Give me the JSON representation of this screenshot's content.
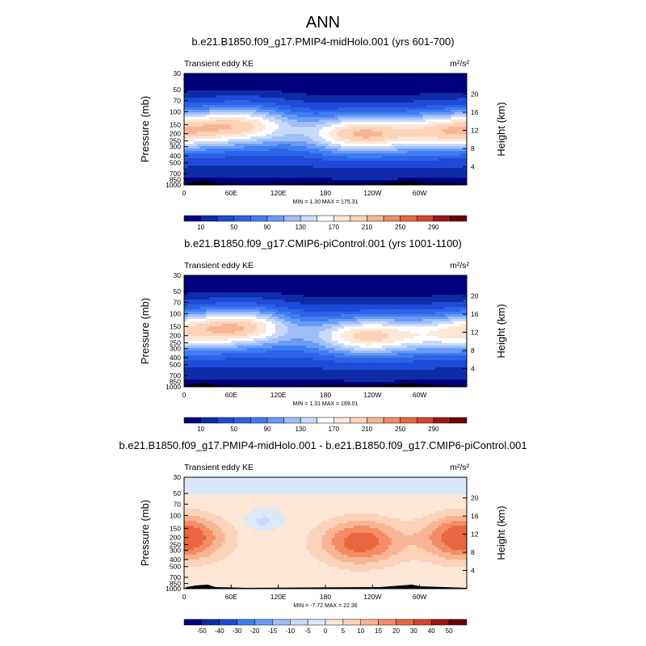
{
  "page_title": "ANN",
  "chart_data": [
    {
      "type": "heatmap",
      "title": "b.e21.B1850.f09_g17.PMIP4-midHolo.001 (yrs 601-700)",
      "left_label": "Transient eddy KE",
      "units": "m²/s²",
      "ylabel": "Pressure (mb)",
      "ylabel_right": "Height (km)",
      "x_ticks": [
        "0",
        "60E",
        "120E",
        "180",
        "120W",
        "60W"
      ],
      "y_ticks": [
        "30",
        "50",
        "70",
        "100",
        "150",
        "200",
        "250",
        "300",
        "400",
        "500",
        "700",
        "850",
        "1000"
      ],
      "y_right_ticks": [
        "4",
        "8",
        "12",
        "16",
        "20"
      ],
      "min_max": "MIN =   1.30  MAX = 175.31",
      "colorbar_labels": [
        "10",
        "50",
        "90",
        "130",
        "170",
        "210",
        "250",
        "290"
      ],
      "levels": [
        10,
        30,
        50,
        70,
        90,
        110,
        130,
        150,
        170,
        190,
        210,
        230,
        250,
        270,
        290
      ],
      "jets": [
        {
          "lon": 75,
          "pressure": 150,
          "max": 158
        },
        {
          "lon": 225,
          "pressure": 200,
          "max": 175
        },
        {
          "lon": 340,
          "pressure": 180,
          "max": 158
        }
      ]
    },
    {
      "type": "heatmap",
      "title": "b.e21.B1850.f09_g17.CMIP6-piControl.001 (yrs 1001-1100)",
      "left_label": "Transient eddy KE",
      "units": "m²/s²",
      "ylabel": "Pressure (mb)",
      "ylabel_right": "Height (km)",
      "x_ticks": [
        "0",
        "60E",
        "120E",
        "180",
        "120W",
        "60W"
      ],
      "y_ticks": [
        "30",
        "50",
        "70",
        "100",
        "150",
        "200",
        "250",
        "300",
        "400",
        "500",
        "700",
        "850",
        "1000"
      ],
      "y_right_ticks": [
        "4",
        "8",
        "12",
        "16",
        "20"
      ],
      "min_max": "MIN =   1.31  MAX = 169.01",
      "colorbar_labels": [
        "10",
        "50",
        "90",
        "130",
        "170",
        "210",
        "250",
        "290"
      ],
      "levels": [
        10,
        30,
        50,
        70,
        90,
        110,
        130,
        150,
        170,
        190,
        210,
        230,
        250,
        270,
        290
      ],
      "jets": [
        {
          "lon": 72,
          "pressure": 150,
          "max": 169
        },
        {
          "lon": 232,
          "pressure": 200,
          "max": 160
        },
        {
          "lon": 345,
          "pressure": 180,
          "max": 120
        }
      ]
    },
    {
      "type": "heatmap",
      "title": "b.e21.B1850.f09_g17.PMIP4-midHolo.001 - b.e21.B1850.f09_g17.CMIP6-piControl.001",
      "left_label": "Transient eddy KE",
      "units": "m²/s²",
      "ylabel": "Pressure (mb)",
      "ylabel_right": "Height (km)",
      "x_ticks": [
        "0",
        "60E",
        "120E",
        "180",
        "120W",
        "60W"
      ],
      "y_ticks": [
        "30",
        "50",
        "70",
        "100",
        "150",
        "200",
        "250",
        "300",
        "400",
        "500",
        "700",
        "850",
        "1000"
      ],
      "y_right_ticks": [
        "4",
        "8",
        "12",
        "16",
        "20"
      ],
      "min_max": "MIN =  -7.72  MAX =  22.36",
      "colorbar_labels": [
        "-50",
        "-40",
        "-30",
        "-20",
        "-15",
        "-10",
        "-5",
        "0",
        "5",
        "10",
        "15",
        "20",
        "30",
        "40",
        "50"
      ],
      "levels": [
        -50,
        -40,
        -30,
        -20,
        -15,
        -10,
        -5,
        0,
        5,
        10,
        15,
        20,
        30,
        40,
        50
      ],
      "anomalies": [
        {
          "lon": 225,
          "pressure": 230,
          "max": 22.4
        },
        {
          "lon": 355,
          "pressure": 200,
          "max": 20
        },
        {
          "lon": 5,
          "pressure": 200,
          "max": 6
        },
        {
          "lon": 100,
          "pressure": 120,
          "max": -7.7
        }
      ]
    }
  ],
  "colors": {
    "palette": [
      "#00007f",
      "#0f2ca8",
      "#1f4bd8",
      "#2d63e6",
      "#3d7ef4",
      "#6a9af7",
      "#9fbff8",
      "#c7dafa",
      "#ffffff",
      "#fde7d6",
      "#fcd2b8",
      "#f8b595",
      "#f38d64",
      "#ea6640",
      "#d9432e",
      "#a01515",
      "#6f0000"
    ],
    "diff_palette": [
      "#00007f",
      "#0f2ca8",
      "#1f4bd8",
      "#3d7ef4",
      "#6a9af7",
      "#9fbff8",
      "#c7dafa",
      "#d9e9fb",
      "#fde7d6",
      "#fcd2b8",
      "#f8b595",
      "#f38d64",
      "#ea6640",
      "#d9432e",
      "#a01515",
      "#6f0000"
    ]
  }
}
